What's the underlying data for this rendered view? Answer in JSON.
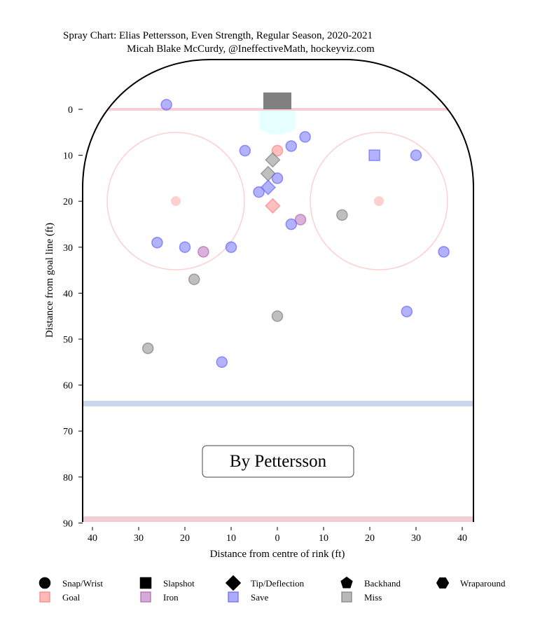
{
  "chart_data": {
    "type": "scatter",
    "title": "Spray Chart: Elias Pettersson, Even Strength, Regular Season, 2020-2021",
    "subtitle": "Micah Blake McCurdy, @IneffectiveMath, hockeyviz.com",
    "xlabel": "Distance from centre of rink (ft)",
    "ylabel": "Distance from goal line (ft)",
    "xlim": [
      -42.5,
      42.5
    ],
    "ylim": [
      -11,
      90
    ],
    "xticks": [
      -40,
      -30,
      -20,
      -10,
      0,
      10,
      20,
      30,
      40
    ],
    "xtick_labels": [
      "40",
      "30",
      "20",
      "10",
      "0",
      "10",
      "20",
      "30",
      "40"
    ],
    "yticks": [
      0,
      10,
      20,
      30,
      40,
      50,
      60,
      70,
      80,
      90
    ],
    "ytick_labels": [
      "0",
      "10",
      "20",
      "30",
      "40",
      "50",
      "60",
      "70",
      "80",
      "90"
    ],
    "annotation": "By Pettersson",
    "colors": {
      "goal": "#ff8080",
      "iron": "#b366b3",
      "save": "#6666ff",
      "miss": "#808080"
    },
    "legend_shapes": [
      {
        "label": "Snap/Wrist",
        "shape": "circle"
      },
      {
        "label": "Slapshot",
        "shape": "square"
      },
      {
        "label": "Tip/Deflection",
        "shape": "diamond"
      },
      {
        "label": "Backhand",
        "shape": "pentagon"
      },
      {
        "label": "Wraparound",
        "shape": "hexagon"
      }
    ],
    "legend_outcomes": [
      {
        "label": "Goal",
        "key": "goal"
      },
      {
        "label": "Iron",
        "key": "iron"
      },
      {
        "label": "Save",
        "key": "save"
      },
      {
        "label": "Miss",
        "key": "miss"
      }
    ],
    "points": [
      {
        "x": -24,
        "y": -1,
        "shape": "circle",
        "outcome": "save"
      },
      {
        "x": -7,
        "y": 9,
        "shape": "circle",
        "outcome": "save"
      },
      {
        "x": 0,
        "y": 9,
        "shape": "circle",
        "outcome": "goal"
      },
      {
        "x": 3,
        "y": 8,
        "shape": "circle",
        "outcome": "save"
      },
      {
        "x": 6,
        "y": 6,
        "shape": "circle",
        "outcome": "save"
      },
      {
        "x": -1,
        "y": 11,
        "shape": "diamond",
        "outcome": "miss"
      },
      {
        "x": -2,
        "y": 14,
        "shape": "diamond",
        "outcome": "miss"
      },
      {
        "x": 0,
        "y": 15,
        "shape": "circle",
        "outcome": "save"
      },
      {
        "x": -2,
        "y": 17,
        "shape": "diamond",
        "outcome": "save"
      },
      {
        "x": -4,
        "y": 18,
        "shape": "circle",
        "outcome": "save"
      },
      {
        "x": -1,
        "y": 21,
        "shape": "diamond",
        "outcome": "goal"
      },
      {
        "x": 5,
        "y": 24,
        "shape": "circle",
        "outcome": "iron"
      },
      {
        "x": 3,
        "y": 25,
        "shape": "circle",
        "outcome": "save"
      },
      {
        "x": 21,
        "y": 10,
        "shape": "square",
        "outcome": "save"
      },
      {
        "x": 30,
        "y": 10,
        "shape": "circle",
        "outcome": "save"
      },
      {
        "x": 14,
        "y": 23,
        "shape": "circle",
        "outcome": "miss"
      },
      {
        "x": 36,
        "y": 31,
        "shape": "circle",
        "outcome": "save"
      },
      {
        "x": -26,
        "y": 29,
        "shape": "circle",
        "outcome": "save"
      },
      {
        "x": -20,
        "y": 30,
        "shape": "circle",
        "outcome": "save"
      },
      {
        "x": -16,
        "y": 31,
        "shape": "circle",
        "outcome": "iron"
      },
      {
        "x": -10,
        "y": 30,
        "shape": "circle",
        "outcome": "save"
      },
      {
        "x": -18,
        "y": 37,
        "shape": "circle",
        "outcome": "miss"
      },
      {
        "x": 0,
        "y": 45,
        "shape": "circle",
        "outcome": "miss"
      },
      {
        "x": 28,
        "y": 44,
        "shape": "circle",
        "outcome": "save"
      },
      {
        "x": -28,
        "y": 52,
        "shape": "circle",
        "outcome": "miss"
      },
      {
        "x": -12,
        "y": 55,
        "shape": "circle",
        "outcome": "save"
      }
    ]
  }
}
